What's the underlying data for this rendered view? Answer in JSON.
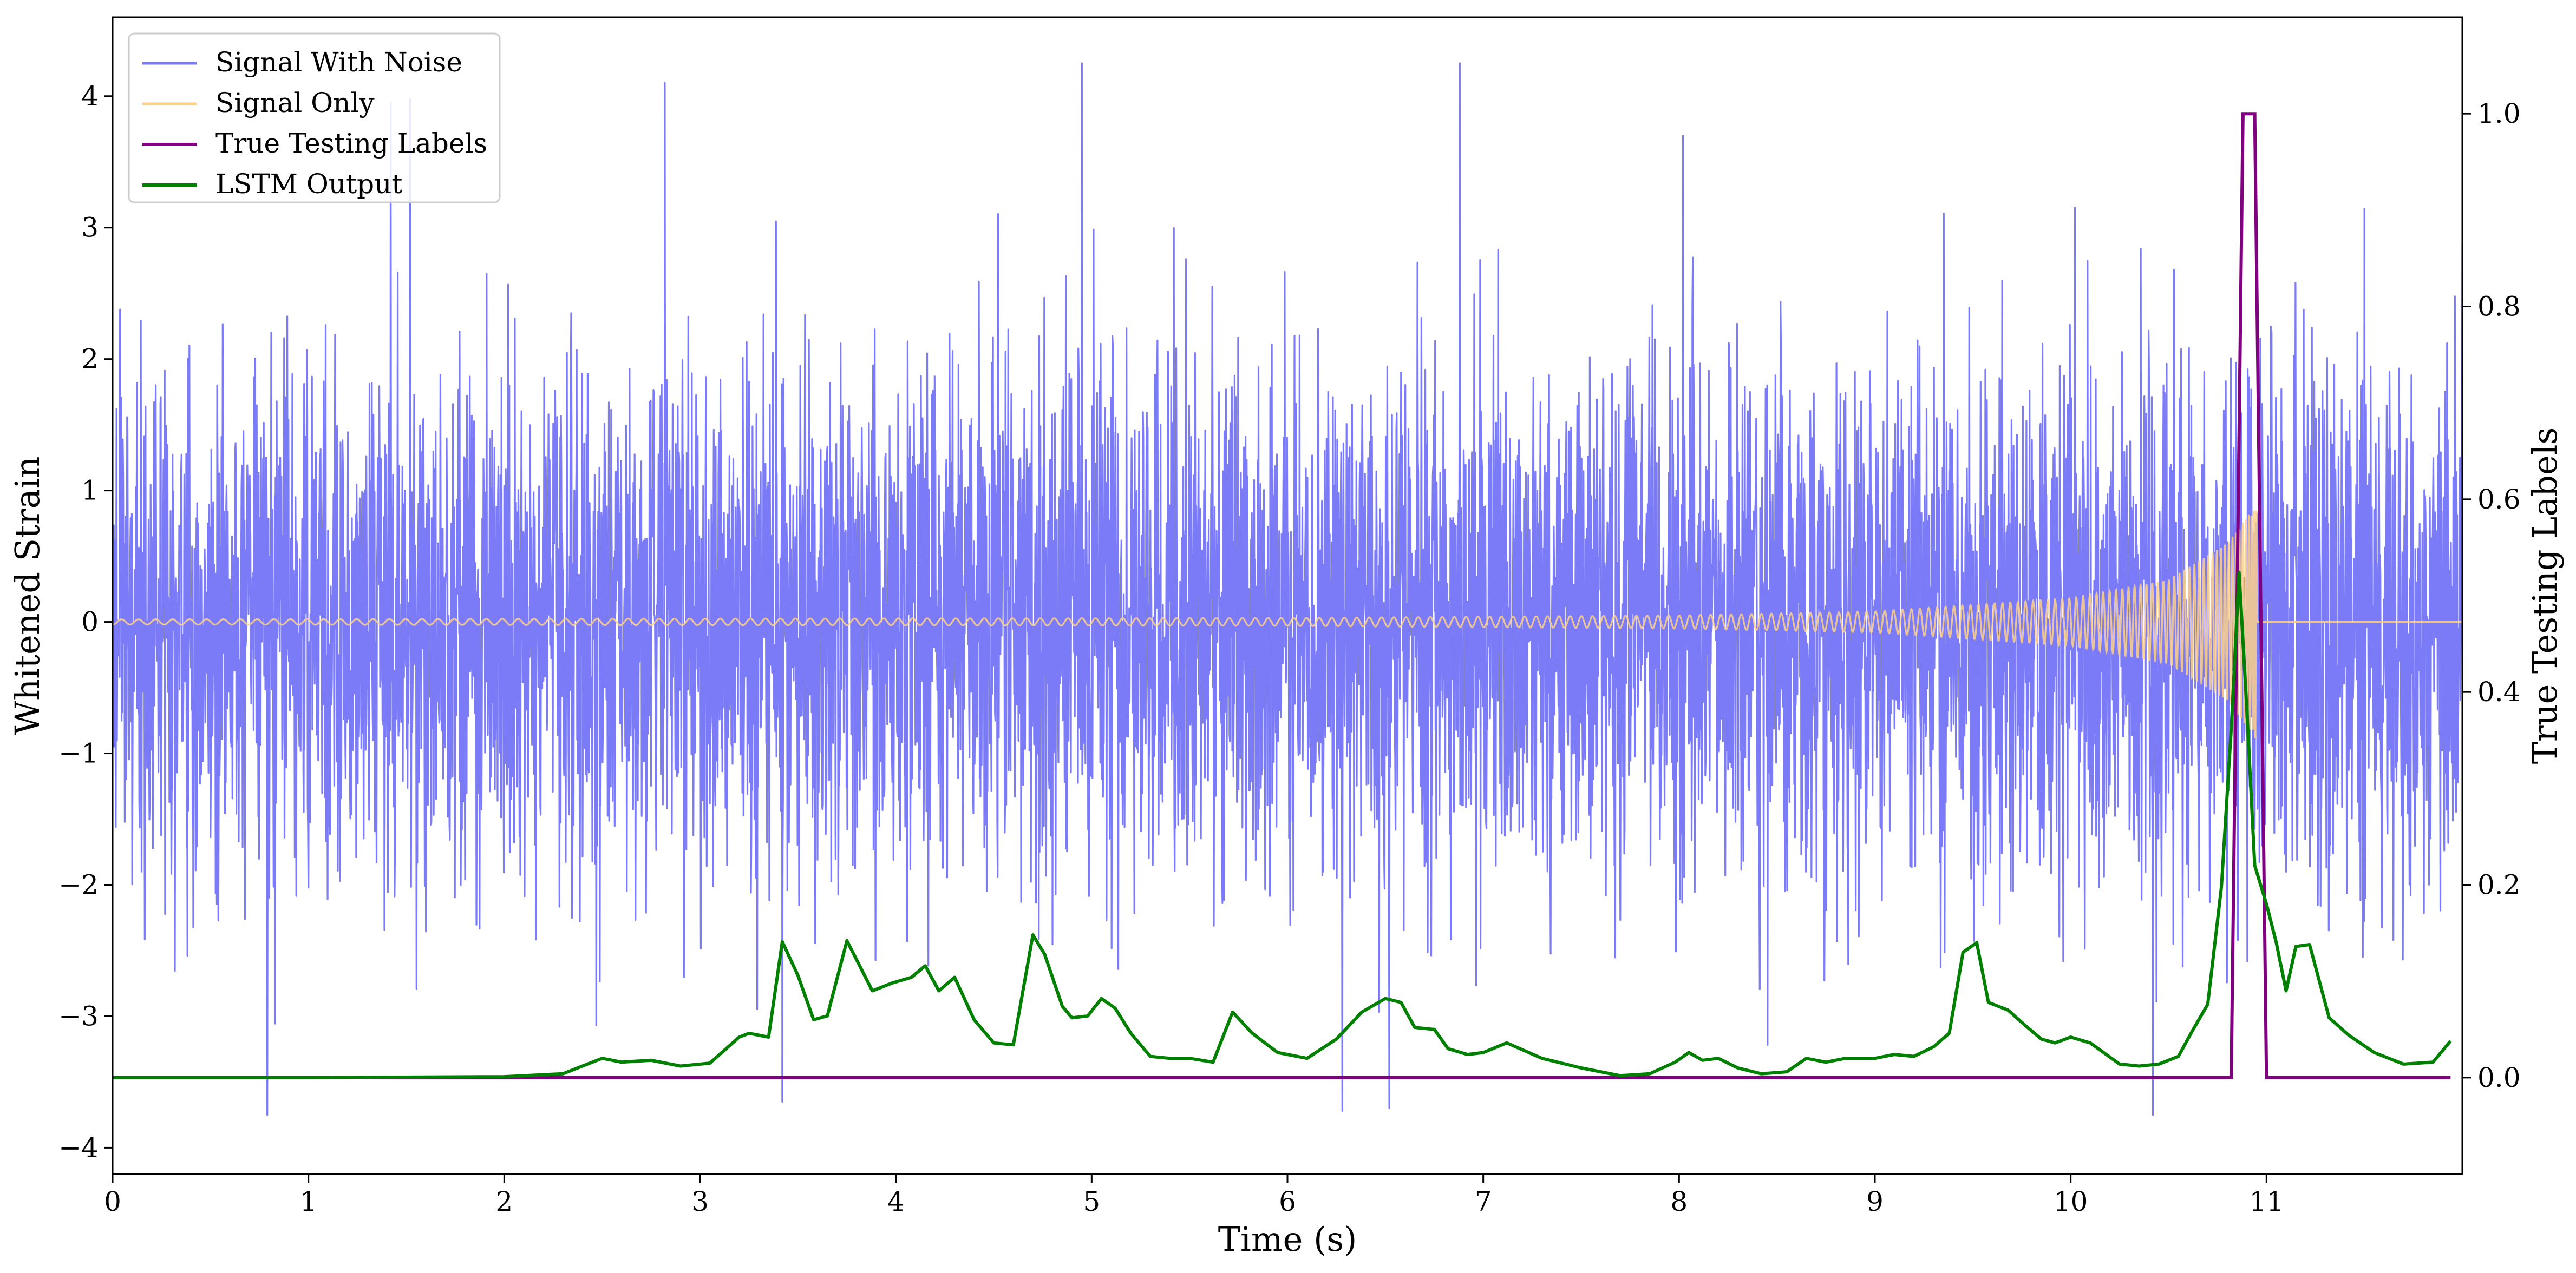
{
  "chart_data": {
    "type": "line",
    "xlabel": "Time (s)",
    "ylabel": "Whitened Strain",
    "y2label": "True Testing Labels",
    "xlim": [
      0,
      12
    ],
    "ylim": [
      -4.2,
      4.6
    ],
    "y2lim": [
      -0.1,
      1.1
    ],
    "xticks": [
      "0",
      "1",
      "2",
      "3",
      "4",
      "5",
      "6",
      "7",
      "8",
      "9",
      "10",
      "11"
    ],
    "yticks": [
      "−4",
      "−3",
      "−2",
      "−1",
      "0",
      "1",
      "2",
      "3",
      "4"
    ],
    "y2ticks": [
      "0.0",
      "0.2",
      "0.4",
      "0.6",
      "0.8",
      "1.0"
    ],
    "legend_position": "top-left",
    "colors": {
      "signal_with_noise": "#7b7bf7",
      "signal_only": "#fdd08a",
      "true_labels": "#800080",
      "lstm_output": "#008000"
    },
    "series": [
      {
        "name": "Signal With Noise",
        "axis": "left",
        "description_values": "dense Gaussian-like noise, amplitude mostly within ±2.5, peaks near ±4.2",
        "x_range": [
          0,
          12
        ],
        "peaks": [
          {
            "x": 0.79,
            "y": -3.75
          },
          {
            "x": 1.42,
            "y": 3.95
          },
          {
            "x": 1.52,
            "y": 3.98
          },
          {
            "x": 2.82,
            "y": 4.1
          },
          {
            "x": 3.42,
            "y": -3.65
          },
          {
            "x": 4.95,
            "y": 4.25
          },
          {
            "x": 6.28,
            "y": -3.72
          },
          {
            "x": 6.52,
            "y": -3.7
          },
          {
            "x": 6.88,
            "y": 4.25
          },
          {
            "x": 8.02,
            "y": 3.7
          },
          {
            "x": 10.42,
            "y": -3.75
          }
        ]
      },
      {
        "name": "Signal Only",
        "axis": "left",
        "description_values": "chirp centered at 0, amplitude ~0.02 growing to ~0.9 near merger at ~10.95 s, then 0",
        "envelope": [
          {
            "x": 0.0,
            "a": 0.02
          },
          {
            "x": 6.0,
            "a": 0.03
          },
          {
            "x": 8.0,
            "a": 0.05
          },
          {
            "x": 9.0,
            "a": 0.08
          },
          {
            "x": 10.0,
            "a": 0.18
          },
          {
            "x": 10.5,
            "a": 0.32
          },
          {
            "x": 10.8,
            "a": 0.6
          },
          {
            "x": 10.95,
            "a": 0.9
          }
        ]
      },
      {
        "name": "True Testing Labels",
        "axis": "right",
        "x": [
          0,
          10.82,
          10.88,
          10.94,
          11.0,
          11.94
        ],
        "values": [
          0,
          0,
          1,
          1,
          0,
          0
        ]
      },
      {
        "name": "LSTM Output",
        "axis": "right",
        "x": [
          0,
          1.0,
          2.0,
          2.3,
          2.5,
          2.6,
          2.75,
          2.9,
          3.05,
          3.2,
          3.25,
          3.35,
          3.42,
          3.5,
          3.58,
          3.65,
          3.75,
          3.88,
          3.98,
          4.08,
          4.15,
          4.22,
          4.3,
          4.4,
          4.5,
          4.6,
          4.7,
          4.76,
          4.85,
          4.9,
          4.98,
          5.05,
          5.12,
          5.2,
          5.3,
          5.4,
          5.5,
          5.62,
          5.72,
          5.82,
          5.95,
          6.1,
          6.25,
          6.38,
          6.5,
          6.58,
          6.65,
          6.75,
          6.82,
          6.92,
          7.0,
          7.12,
          7.3,
          7.5,
          7.7,
          7.85,
          7.98,
          8.05,
          8.12,
          8.2,
          8.3,
          8.42,
          8.55,
          8.65,
          8.75,
          8.85,
          9.0,
          9.1,
          9.2,
          9.3,
          9.38,
          9.45,
          9.52,
          9.58,
          9.68,
          9.78,
          9.85,
          9.92,
          10.0,
          10.1,
          10.25,
          10.35,
          10.45,
          10.55,
          10.62,
          10.7,
          10.77,
          10.82,
          10.86,
          10.9,
          10.94,
          11.0,
          11.05,
          11.1,
          11.15,
          11.22,
          11.32,
          11.42,
          11.55,
          11.7,
          11.85,
          11.94
        ],
        "values": [
          0,
          0,
          0.001,
          0.004,
          0.02,
          0.016,
          0.018,
          0.012,
          0.015,
          0.042,
          0.046,
          0.042,
          0.141,
          0.106,
          0.06,
          0.064,
          0.142,
          0.09,
          0.098,
          0.104,
          0.116,
          0.09,
          0.104,
          0.06,
          0.036,
          0.034,
          0.148,
          0.128,
          0.074,
          0.062,
          0.064,
          0.082,
          0.072,
          0.046,
          0.022,
          0.02,
          0.02,
          0.016,
          0.068,
          0.046,
          0.026,
          0.02,
          0.04,
          0.068,
          0.082,
          0.078,
          0.052,
          0.05,
          0.03,
          0.024,
          0.026,
          0.036,
          0.02,
          0.01,
          0.002,
          0.004,
          0.016,
          0.026,
          0.018,
          0.02,
          0.01,
          0.004,
          0.006,
          0.02,
          0.016,
          0.02,
          0.02,
          0.024,
          0.022,
          0.032,
          0.046,
          0.13,
          0.14,
          0.078,
          0.07,
          0.052,
          0.04,
          0.036,
          0.042,
          0.036,
          0.014,
          0.012,
          0.014,
          0.022,
          0.048,
          0.076,
          0.198,
          0.362,
          0.524,
          0.38,
          0.22,
          0.18,
          0.14,
          0.09,
          0.136,
          0.138,
          0.062,
          0.044,
          0.026,
          0.014,
          0.016,
          0.038
        ]
      }
    ]
  }
}
